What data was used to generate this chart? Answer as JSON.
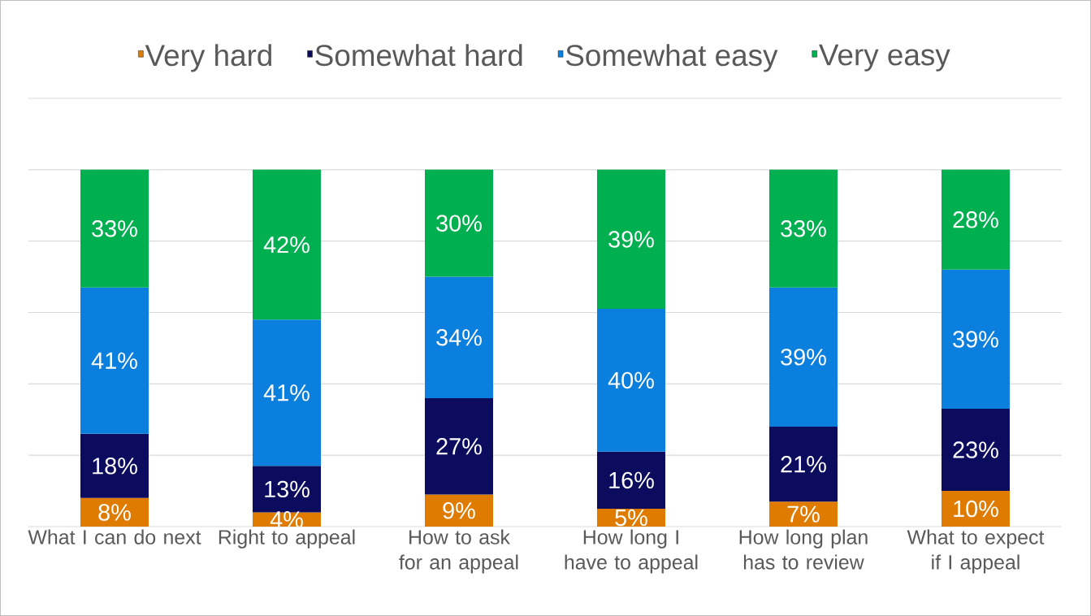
{
  "chart_data": {
    "type": "bar",
    "stacked": true,
    "categories": [
      "What I can do next",
      "Right to appeal",
      "How to ask for an appeal",
      "How long I have to appeal",
      "How long plan has to review",
      "What to expect if I appeal"
    ],
    "series": [
      {
        "name": "Very hard",
        "color": "#df7c00",
        "values": [
          8,
          4,
          9,
          5,
          7,
          10
        ],
        "value_labels": [
          "8%",
          "4%",
          "9%",
          "5%",
          "7%",
          "10%"
        ]
      },
      {
        "name": "Somewhat hard",
        "color": "#0c0c5e",
        "values": [
          18,
          13,
          27,
          16,
          21,
          23
        ],
        "value_labels": [
          "18%",
          "13%",
          "27%",
          "16%",
          "21%",
          "23%"
        ]
      },
      {
        "name": "Somewhat easy",
        "color": "#0b7fde",
        "values": [
          41,
          41,
          34,
          40,
          39,
          39
        ],
        "value_labels": [
          "41%",
          "41%",
          "34%",
          "40%",
          "39%",
          "39%"
        ]
      },
      {
        "name": "Very easy",
        "color": "#00b050",
        "values": [
          33,
          42,
          30,
          39,
          33,
          28
        ],
        "value_labels": [
          "33%",
          "42%",
          "30%",
          "39%",
          "33%",
          "28%"
        ]
      }
    ],
    "ylim": [
      0,
      120
    ],
    "yticks": [
      {
        "value": 0,
        "label": null
      },
      {
        "value": 20,
        "label": null
      },
      {
        "value": 40,
        "label": null
      },
      {
        "value": 60,
        "label": null
      },
      {
        "value": 80,
        "label": null
      },
      {
        "value": 100,
        "label": null
      },
      {
        "value": 120,
        "label": null
      }
    ],
    "grid": "y",
    "legend": "top",
    "tick_labels": "x"
  }
}
